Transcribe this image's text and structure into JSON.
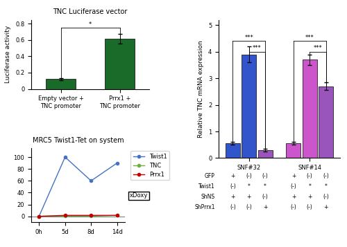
{
  "chart_data": [
    {
      "type": "bar",
      "title": "TNC Luciferase vector",
      "categories": [
        "Empty vector +\nTNC promoter",
        "Prrx1 +\nTNC promoter"
      ],
      "values": [
        0.12,
        0.62
      ],
      "errors": [
        0.015,
        0.06
      ],
      "colors": [
        "#1a6b2a",
        "#1a6b2a"
      ],
      "y_label": "Luciferase activity",
      "ylim": [
        0,
        0.85
      ],
      "yticks": [
        0,
        0.2,
        0.4,
        0.6,
        0.8
      ],
      "annotations": [
        {
          "text": "*",
          "from": 0,
          "to": 1,
          "y": 0.75
        }
      ]
    },
    {
      "type": "bar",
      "y_label": "Relative TNC mRNA expression",
      "categories": [
        "SNF#32",
        "SNF#14"
      ],
      "series": [
        {
          "values": [
            0.55,
            0.55
          ],
          "errors": [
            0.05,
            0.05
          ],
          "colors": [
            "#3355cc",
            "#cc55cc"
          ]
        },
        {
          "values": [
            3.9,
            3.7
          ],
          "errors": [
            0.3,
            0.2
          ],
          "colors": [
            "#3355cc",
            "#cc55cc"
          ]
        },
        {
          "values": [
            0.3,
            2.7
          ],
          "errors": [
            0.05,
            0.15
          ],
          "colors": [
            "#9955bb",
            "#9955bb"
          ]
        }
      ],
      "ylim": [
        0,
        5.2
      ],
      "yticks": [
        0,
        1,
        2,
        3,
        4,
        5
      ],
      "condition_rows": [
        "GFP",
        "Twist1",
        "ShNS",
        "ShPrrx1"
      ],
      "conditions": [
        [
          "+",
          "(-)",
          "(-)"
        ],
        [
          "(-)",
          "*",
          "*"
        ],
        [
          "+",
          "+",
          "(-)"
        ],
        [
          "(-)",
          "(-)",
          "+"
        ]
      ],
      "annotations": [
        {
          "text": "***",
          "category": 0,
          "from": 0,
          "to": 2,
          "y": 4.4
        },
        {
          "text": "***",
          "category": 0,
          "from": 1,
          "to": 2,
          "y": 4.0
        },
        {
          "text": "***",
          "category": 1,
          "from": 0,
          "to": 2,
          "y": 4.4
        },
        {
          "text": "***",
          "category": 1,
          "from": 1,
          "to": 2,
          "y": 4.0
        }
      ]
    },
    {
      "type": "line",
      "title": "MRC5 Twist1-Tet on system",
      "categories": [
        "0h",
        "5d",
        "8d",
        "14d"
      ],
      "series": [
        {
          "name": "Twist1",
          "color": "#4472c4",
          "marker": "o",
          "values": [
            0.1,
            100,
            60,
            90
          ]
        },
        {
          "name": "TNC",
          "color": "#70ad47",
          "marker": "o",
          "values": [
            0.1,
            0.5,
            0.3,
            1.7
          ]
        },
        {
          "name": "Prrx1",
          "color": "#c00000",
          "marker": "o",
          "values": [
            0.1,
            1.7,
            1.7,
            1.7
          ]
        }
      ],
      "ylim": [
        -10,
        115
      ],
      "yticks": [
        0,
        20,
        40,
        60,
        80,
        100
      ],
      "legend": "upper left",
      "hline": {
        "y": 0.1,
        "color": "#808080"
      },
      "annotations": [
        {
          "text": "xDoxy"
        }
      ]
    }
  ]
}
